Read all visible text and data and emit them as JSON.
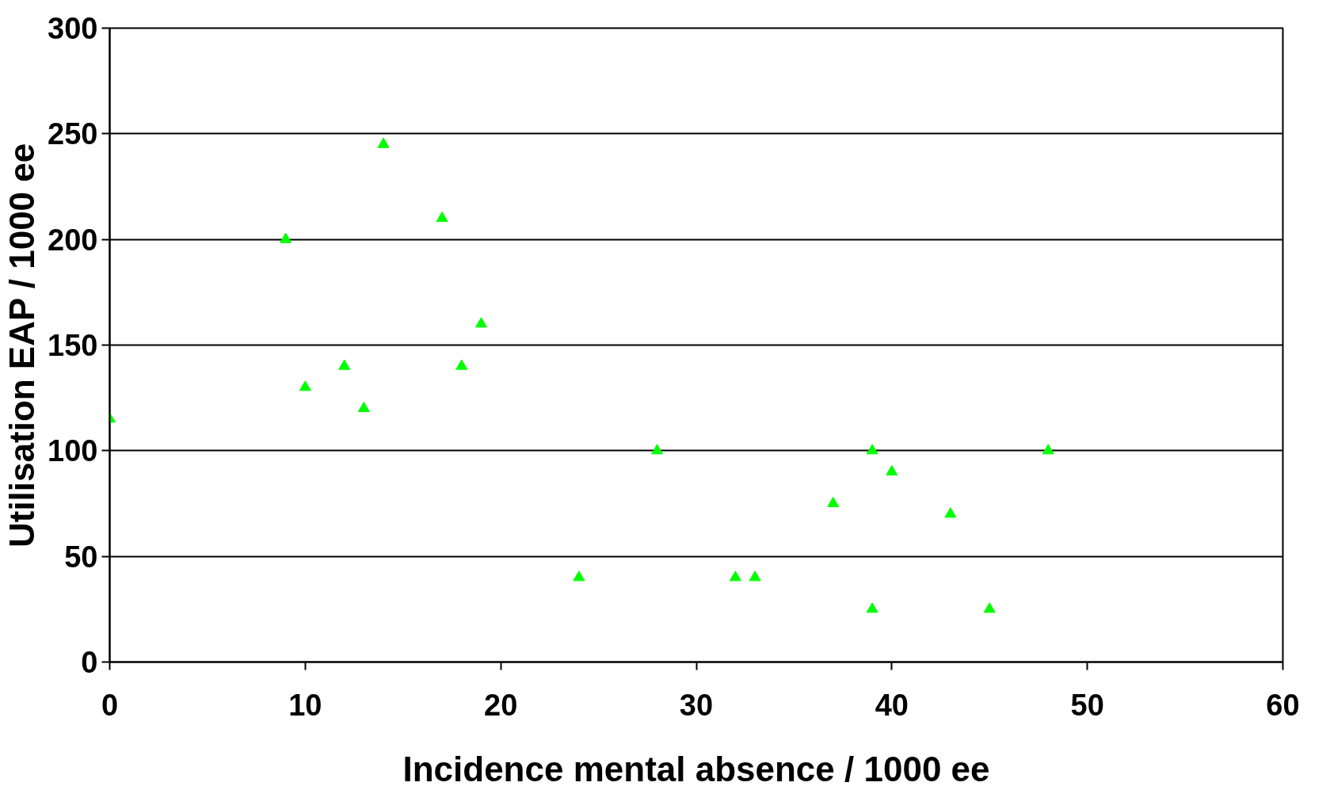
{
  "chart_data": {
    "type": "scatter",
    "xlabel": "Incidence mental absence / 1000 ee",
    "ylabel": "Utilisation EAP / 1000 ee",
    "x": [
      0,
      9,
      10,
      12,
      13,
      14,
      17,
      18,
      19,
      24,
      28,
      32,
      33,
      37,
      39,
      39,
      40,
      43,
      45,
      48
    ],
    "values": [
      115,
      200,
      130,
      140,
      120,
      245,
      210,
      140,
      160,
      40,
      100,
      40,
      40,
      75,
      100,
      25,
      90,
      70,
      25,
      100
    ],
    "color": "#00ff00",
    "marker": "triangle",
    "xlim": [
      0,
      60
    ],
    "xticks": [
      0,
      10,
      20,
      30,
      40,
      50,
      60
    ],
    "ylim": [
      0,
      300
    ],
    "yticks": [
      0,
      50,
      100,
      150,
      200,
      250,
      300
    ],
    "grid": "y"
  }
}
